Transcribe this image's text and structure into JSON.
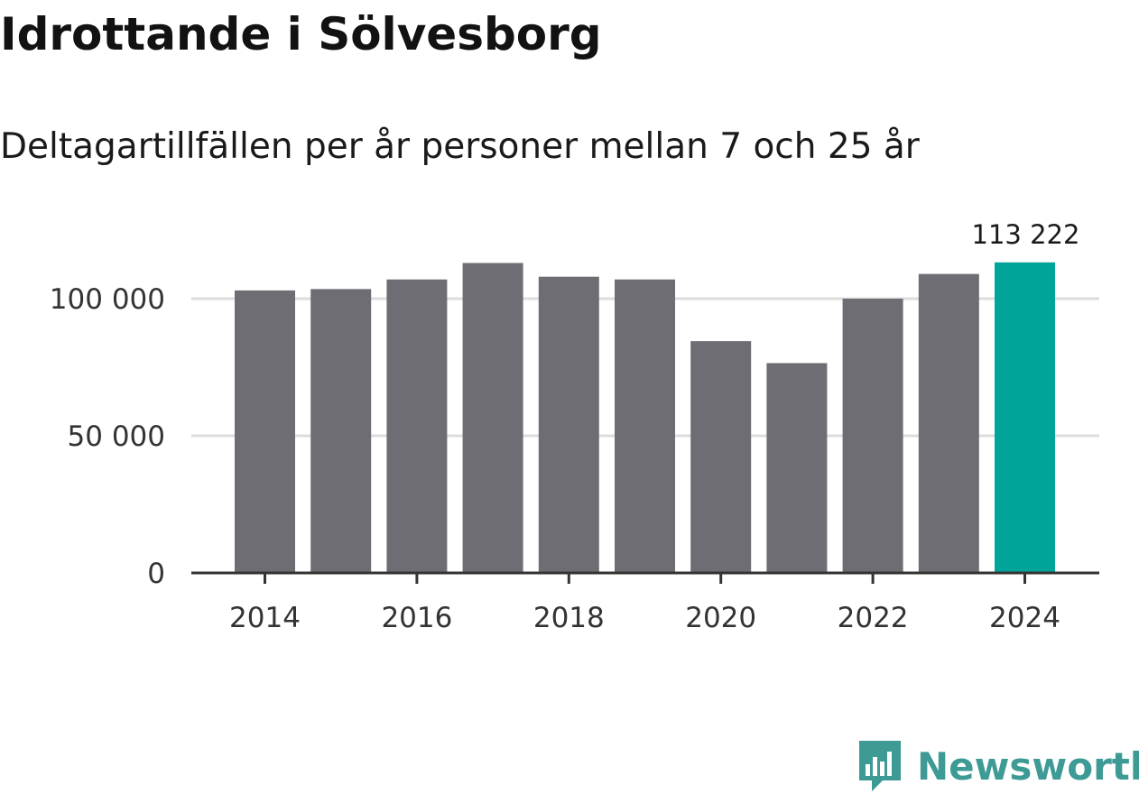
{
  "header": {
    "title": "Idrottande i Sölvesborg",
    "subtitle": "Deltagartillfällen per år personer mellan 7 och 25 år"
  },
  "chart_data": {
    "type": "bar",
    "categories": [
      "2014",
      "2015",
      "2016",
      "2017",
      "2018",
      "2019",
      "2020",
      "2021",
      "2022",
      "2023",
      "2024"
    ],
    "values": [
      103000,
      103500,
      107000,
      113000,
      108000,
      107000,
      84500,
      76500,
      100000,
      109000,
      113222
    ],
    "highlight_index": 10,
    "highlight_label": "113 222",
    "xticks": [
      "2014",
      "2016",
      "2018",
      "2020",
      "2022",
      "2024"
    ],
    "yticks": [
      {
        "value": 0,
        "label": "0"
      },
      {
        "value": 50000,
        "label": "50 000"
      },
      {
        "value": 100000,
        "label": "100 000"
      }
    ],
    "ylim": [
      0,
      125000
    ],
    "grid": true,
    "colors": {
      "bar": "#6e6d73",
      "highlight": "#00a499",
      "grid": "#dddddd",
      "axis": "#333333"
    }
  },
  "footer": {
    "brand": "Newsworthy",
    "logo_icon": "bar-chart-flag-icon",
    "brand_color": "#3d9a94"
  }
}
